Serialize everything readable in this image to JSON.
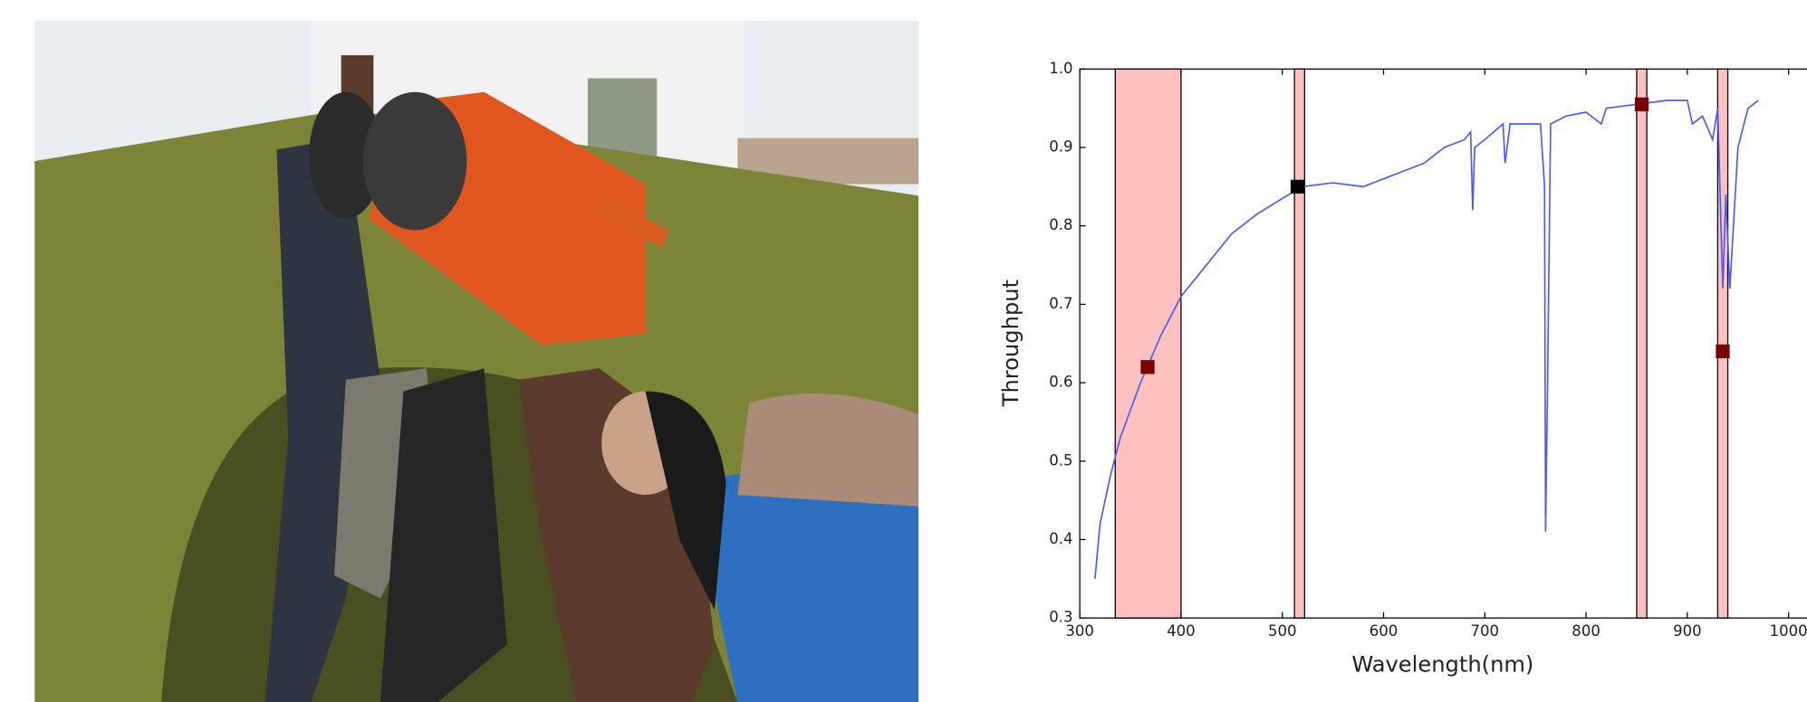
{
  "chart_data": {
    "type": "line",
    "xlabel": "Wavelength(nm)",
    "ylabel": "Throughput",
    "xlim": [
      300,
      1100
    ],
    "ylim": [
      0.3,
      1.0
    ],
    "xticks": [
      300,
      400,
      500,
      600,
      700,
      800,
      900,
      1000
    ],
    "yticks": [
      0.3,
      0.4,
      0.5,
      0.6,
      0.7,
      0.8,
      0.9,
      {
        "value": 1,
        "label": "1.0"
      }
    ],
    "x": [
      315,
      320,
      330,
      340,
      360,
      380,
      400,
      425,
      450,
      475,
      500,
      520,
      550,
      580,
      600,
      620,
      640,
      660,
      680,
      686,
      688,
      690,
      700,
      718,
      720,
      725,
      740,
      755,
      759,
      760,
      762,
      765,
      780,
      800,
      815,
      820,
      850,
      880,
      900,
      905,
      915,
      925,
      930,
      935,
      938,
      942,
      950,
      960,
      970
    ],
    "series": [
      {
        "color": "#4a5cf0",
        "values": [
          0.35,
          0.42,
          0.48,
          0.53,
          0.6,
          0.66,
          0.71,
          0.75,
          0.79,
          0.815,
          0.835,
          0.85,
          0.855,
          0.85,
          0.86,
          0.87,
          0.88,
          0.9,
          0.91,
          0.92,
          0.82,
          0.9,
          0.91,
          0.93,
          0.88,
          0.93,
          0.93,
          0.93,
          0.85,
          0.41,
          0.6,
          0.93,
          0.94,
          0.945,
          0.93,
          0.95,
          0.955,
          0.96,
          0.96,
          0.93,
          0.94,
          0.91,
          0.95,
          0.72,
          0.84,
          0.72,
          0.9,
          0.95,
          0.96
        ]
      }
    ],
    "bands": [
      [
        335,
        400
      ],
      [
        512,
        522
      ],
      [
        850,
        860
      ],
      [
        930,
        940
      ]
    ],
    "band_color": "#ffc0c0",
    "markers": {
      "x": [
        367,
        515,
        855,
        935
      ],
      "values": [
        0.62,
        0.85,
        0.955,
        0.64
      ],
      "colors": [
        "#7a0000",
        "#000000",
        "#7a0000",
        "#7a0000"
      ]
    }
  }
}
